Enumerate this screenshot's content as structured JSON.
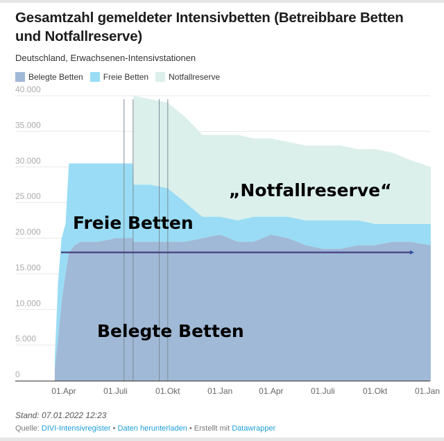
{
  "header": {
    "title": "Gesamtzahl gemeldeter Intensivbetten (Betreibbare Betten und Notfallreserve)",
    "subtitle": "Deutschland, Erwachsenen-Intensivstationen"
  },
  "legend": [
    {
      "label": "Belegte Betten",
      "color": "#a0b9d6"
    },
    {
      "label": "Freie Betten",
      "color": "#9adcf5"
    },
    {
      "label": "Notfallreserve",
      "color": "#dcf0eb"
    }
  ],
  "footer": {
    "stand": "Stand: 07.01.2022 12:23",
    "source_prefix": "Quelle: ",
    "source_link": "DIVI-Intensivregister",
    "sep1": " • ",
    "download": "Daten herunterladen",
    "sep2": " • Erstellt mit ",
    "tool": "Datawrapper"
  },
  "chart_data": {
    "type": "area",
    "stacked": true,
    "title": "Gesamtzahl gemeldeter Intensivbetten (Betreibbare Betten und Notfallreserve)",
    "ylim": [
      0,
      40000
    ],
    "yticks": [
      0,
      5000,
      10000,
      15000,
      20000,
      25000,
      30000,
      35000,
      40000
    ],
    "ytick_labels": [
      "0",
      "5.000",
      "10.000",
      "15.000",
      "20.000",
      "25.000",
      "30.000",
      "35.000",
      "40.000"
    ],
    "xticks": [
      {
        "date": "2020-04-01",
        "label": "01.Apr"
      },
      {
        "date": "2020-07-01",
        "label": "01.Juli"
      },
      {
        "date": "2020-10-01",
        "label": "01.Okt"
      },
      {
        "date": "2021-01-01",
        "label": "01.Jan"
      },
      {
        "date": "2021-04-01",
        "label": "01.Apr"
      },
      {
        "date": "2021-07-01",
        "label": "01.Juli"
      },
      {
        "date": "2021-10-01",
        "label": "01.Okt"
      },
      {
        "date": "2022-01-01",
        "label": "01.Jan"
      }
    ],
    "x": [
      "2020-03-16",
      "2020-03-22",
      "2020-03-28",
      "2020-04-04",
      "2020-04-10",
      "2020-04-20",
      "2020-05-01",
      "2020-06-01",
      "2020-07-01",
      "2020-07-31",
      "2020-08-02",
      "2020-09-01",
      "2020-10-01",
      "2020-11-01",
      "2020-12-01",
      "2021-01-01",
      "2021-02-01",
      "2021-03-01",
      "2021-04-01",
      "2021-05-01",
      "2021-06-01",
      "2021-07-01",
      "2021-08-01",
      "2021-09-01",
      "2021-10-01",
      "2021-11-01",
      "2021-12-01",
      "2022-01-07"
    ],
    "series": [
      {
        "name": "Belegte Betten",
        "color": "#a0b9d6",
        "values": [
          1500,
          6000,
          11000,
          15000,
          18000,
          19000,
          19500,
          19500,
          20000,
          20000,
          19500,
          19500,
          19500,
          19500,
          20000,
          20500,
          19500,
          19500,
          20500,
          20000,
          19000,
          18500,
          18500,
          19000,
          19000,
          19500,
          19500,
          19000
        ]
      },
      {
        "name": "Freie Betten",
        "color": "#9adcf5",
        "values": [
          1500,
          8000,
          9000,
          7000,
          12500,
          11500,
          11000,
          11000,
          10500,
          10500,
          8000,
          8000,
          7500,
          5500,
          3000,
          2500,
          3000,
          3500,
          2500,
          3000,
          3500,
          4000,
          4000,
          3500,
          3000,
          2500,
          2500,
          3000
        ]
      },
      {
        "name": "Notfallreserve",
        "color": "#dcf0eb",
        "values": [
          0,
          0,
          0,
          0,
          0,
          0,
          0,
          0,
          0,
          0,
          12500,
          12000,
          12000,
          12000,
          11500,
          11500,
          12000,
          11000,
          11000,
          10500,
          10500,
          10500,
          10500,
          10000,
          10500,
          10000,
          9000,
          8000
        ]
      }
    ],
    "reference_lines": [
      "2020-07-16",
      "2020-08-01",
      "2020-09-16",
      "2020-10-01"
    ],
    "annotations": {
      "notfall": "„Notfallreserve“",
      "frei": "Freie Betten",
      "belegt": "Belegte Betten"
    },
    "arrow": {
      "from": "2020-03-20",
      "to": "2021-12-20",
      "value": 18500,
      "color": "#2f4f9f"
    },
    "grid": true,
    "legend_position": "top-left"
  }
}
